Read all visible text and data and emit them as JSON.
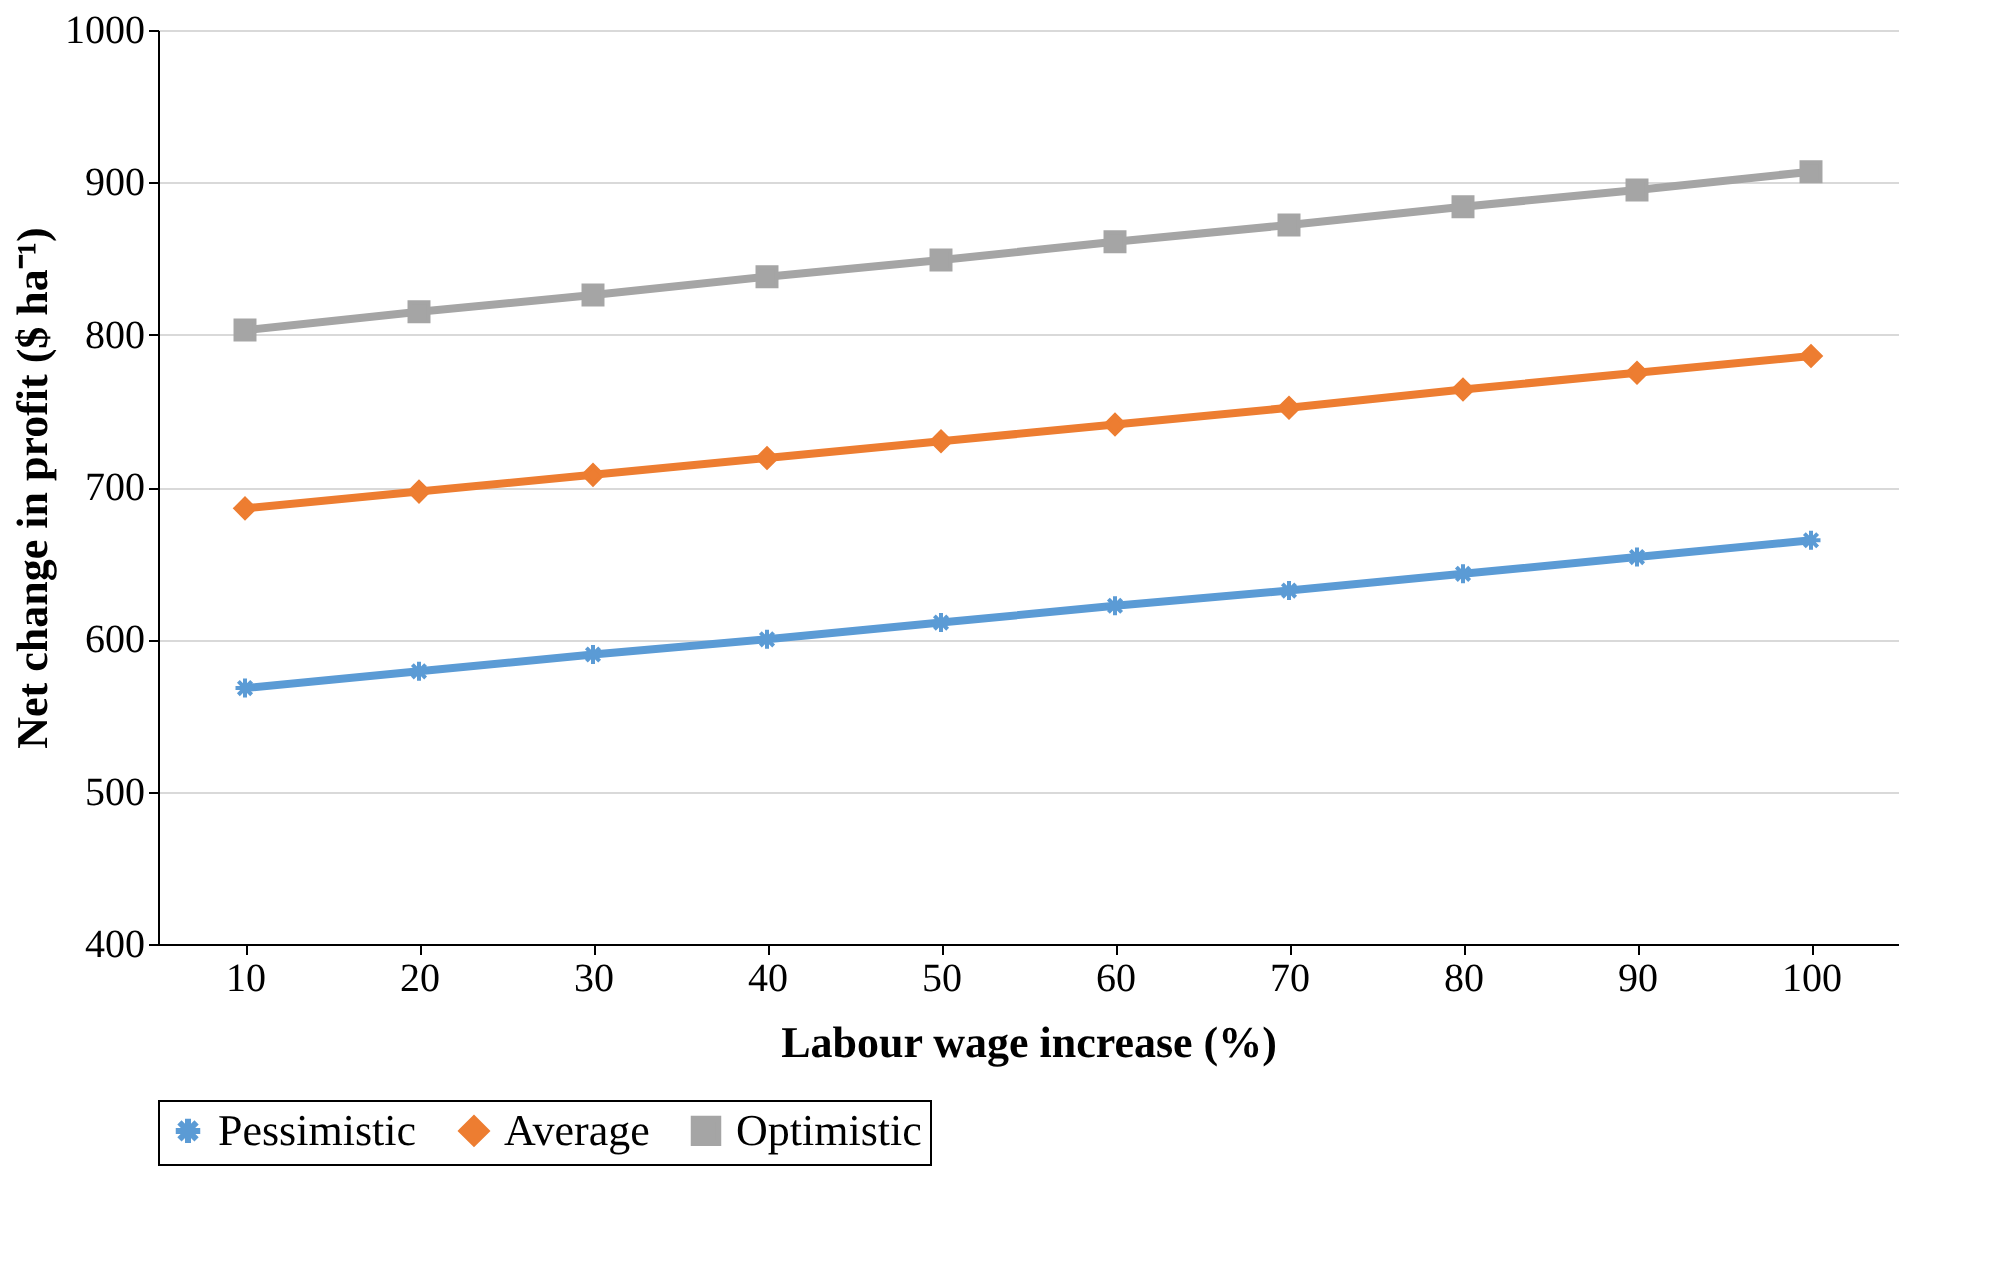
{
  "chart_data": {
    "type": "line",
    "xlabel": "Labour wage increase (%)",
    "ylabel": "Net change in profit ($ ha⁻¹)",
    "categories": [
      "10",
      "20",
      "30",
      "40",
      "50",
      "60",
      "70",
      "80",
      "90",
      "100"
    ],
    "series": [
      {
        "name": "Pessimistic",
        "color": "#5b9bd5",
        "marker": "cross",
        "values": [
          568,
          579,
          590,
          600,
          611,
          622,
          632,
          643,
          654,
          665
        ]
      },
      {
        "name": "Average",
        "color": "#ed7d31",
        "marker": "diamond",
        "values": [
          686,
          697,
          708,
          719,
          730,
          741,
          752,
          764,
          775,
          786
        ]
      },
      {
        "name": "Optimistic",
        "color": "#a5a5a5",
        "marker": "square",
        "values": [
          803,
          815,
          826,
          838,
          849,
          861,
          872,
          884,
          895,
          907
        ]
      }
    ],
    "ylim": [
      400,
      1000
    ],
    "yticks": [
      400,
      500,
      600,
      700,
      800,
      900,
      1000
    ],
    "grid": "y",
    "legend": "bottom",
    "line_style": "solid"
  }
}
